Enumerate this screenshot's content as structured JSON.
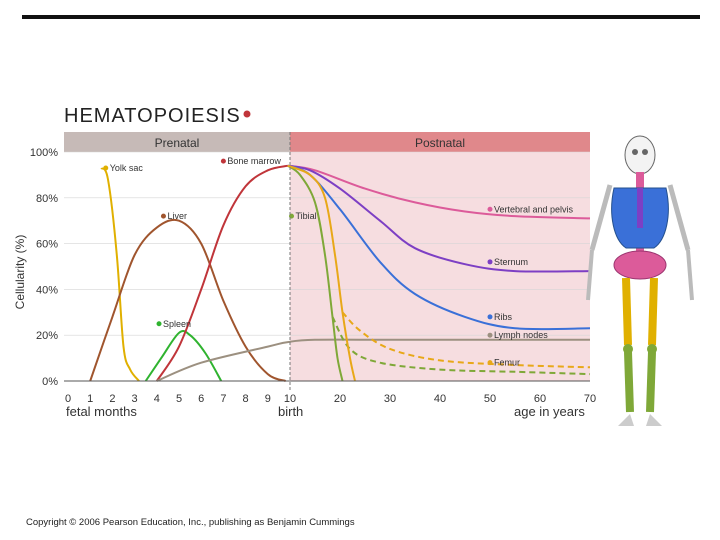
{
  "copyright": "Copyright © 2006 Pearson Education, Inc., publishing as Benjamin Cummings",
  "colors": {
    "prenatal_band": "#c6bab7",
    "postnatal_band": "#e0888b",
    "postnatal_bg": "#f6dde0",
    "yolk_sac": "#e0b000",
    "liver": "#a0552e",
    "spleen": "#2fb32f",
    "bone_marrow": "#c0353a",
    "lymph_nodes": "#9c9080",
    "vertebral_pelvis": "#dc5b9a",
    "sternum": "#7d3fc4",
    "ribs": "#3a70d8",
    "tibia": "#7fa838",
    "femur": "#e8a818"
  },
  "chart_data": {
    "type": "line",
    "title": "HEMATOPOIESIS",
    "ylabel": "Cellularity (%)",
    "xlabel_prenatal": "fetal months",
    "xlabel_birth": "birth",
    "xlabel_postnatal": "age in years",
    "bands": {
      "prenatal": "Prenatal",
      "postnatal": "Postnatal"
    },
    "ylim": [
      0,
      100
    ],
    "yticks": [
      "0%",
      "20%",
      "40%",
      "60%",
      "80%",
      "100%"
    ],
    "prenatal_ticks": [
      "0",
      "1",
      "2",
      "3",
      "4",
      "5",
      "6",
      "7",
      "8",
      "9"
    ],
    "postnatal_ticks": [
      "10",
      "20",
      "30",
      "40",
      "50",
      "60",
      "70"
    ],
    "series_labels": {
      "yolk_sac": "Yolk sac",
      "bone_marrow": "Bone marrow",
      "liver": "Liver",
      "spleen": "Spleen",
      "tibia": "Tibial",
      "vertebral_pelvis": "Vertebral and pelvis",
      "sternum": "Sternum",
      "ribs": "Ribs",
      "lymph_nodes": "Lymph nodes",
      "femur": "Femur"
    },
    "series": [
      {
        "key": "yolk_sac",
        "points": [
          [
            1.5,
            93
          ],
          [
            1.8,
            88
          ],
          [
            2.2,
            55
          ],
          [
            2.5,
            15
          ],
          [
            2.8,
            5
          ],
          [
            3.2,
            0
          ]
        ]
      },
      {
        "key": "liver",
        "points": [
          [
            1,
            0
          ],
          [
            2,
            28
          ],
          [
            3,
            55
          ],
          [
            4,
            67
          ],
          [
            5,
            70
          ],
          [
            6,
            60
          ],
          [
            7,
            35
          ],
          [
            8,
            15
          ],
          [
            9,
            3
          ],
          [
            9.8,
            0
          ]
        ]
      },
      {
        "key": "spleen",
        "points": [
          [
            3.5,
            0
          ],
          [
            4.2,
            10
          ],
          [
            5,
            21
          ],
          [
            5.5,
            20
          ],
          [
            6.2,
            12
          ],
          [
            6.9,
            0
          ]
        ]
      },
      {
        "key": "bone_marrow",
        "points": [
          [
            4,
            0
          ],
          [
            5,
            15
          ],
          [
            6,
            40
          ],
          [
            7,
            68
          ],
          [
            8,
            85
          ],
          [
            9,
            92
          ],
          [
            9.9,
            94
          ]
        ]
      },
      {
        "key": "lymph_nodes",
        "points": [
          [
            4,
            0
          ],
          [
            6,
            8
          ],
          [
            9,
            15
          ],
          [
            9.9,
            17
          ],
          [
            15,
            18
          ],
          [
            30,
            18
          ],
          [
            50,
            18
          ],
          [
            70,
            18
          ]
        ]
      },
      {
        "key": "vertebral_pelvis",
        "points": [
          [
            9.9,
            94
          ],
          [
            15,
            92
          ],
          [
            25,
            84
          ],
          [
            35,
            78
          ],
          [
            45,
            74
          ],
          [
            55,
            72
          ],
          [
            70,
            71
          ]
        ]
      },
      {
        "key": "sternum",
        "points": [
          [
            9.9,
            94
          ],
          [
            14,
            92
          ],
          [
            20,
            84
          ],
          [
            28,
            70
          ],
          [
            35,
            58
          ],
          [
            45,
            51
          ],
          [
            55,
            48
          ],
          [
            70,
            48
          ]
        ]
      },
      {
        "key": "ribs",
        "points": [
          [
            9.9,
            94
          ],
          [
            14,
            90
          ],
          [
            20,
            75
          ],
          [
            28,
            52
          ],
          [
            35,
            38
          ],
          [
            45,
            28
          ],
          [
            55,
            23
          ],
          [
            70,
            23
          ]
        ]
      },
      {
        "key": "tibia",
        "points": [
          [
            9.9,
            94
          ],
          [
            12,
            90
          ],
          [
            15,
            78
          ],
          [
            17,
            55
          ],
          [
            18.5,
            28
          ],
          [
            19.5,
            10
          ],
          [
            20.5,
            0
          ]
        ]
      },
      {
        "key": "tibia_dashed",
        "points": [
          [
            18.5,
            28
          ],
          [
            22,
            14
          ],
          [
            28,
            8
          ],
          [
            40,
            5
          ],
          [
            55,
            4
          ],
          [
            70,
            3
          ]
        ]
      },
      {
        "key": "femur",
        "points": [
          [
            9.9,
            94
          ],
          [
            14,
            90
          ],
          [
            17,
            80
          ],
          [
            19,
            55
          ],
          [
            20.5,
            30
          ],
          [
            22,
            10
          ],
          [
            23,
            0
          ]
        ]
      },
      {
        "key": "femur_dashed",
        "points": [
          [
            20.5,
            30
          ],
          [
            24,
            22
          ],
          [
            30,
            14
          ],
          [
            40,
            9
          ],
          [
            55,
            7
          ],
          [
            70,
            6
          ]
        ]
      }
    ]
  }
}
